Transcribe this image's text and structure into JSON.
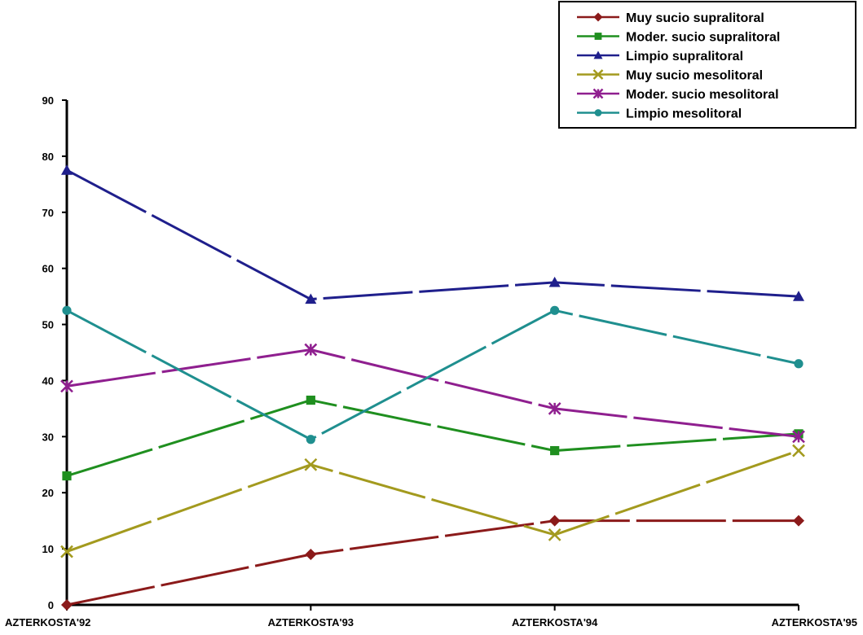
{
  "chart_data": {
    "type": "line",
    "title": "",
    "xlabel": "",
    "ylabel": "",
    "categories": [
      "AZTERKOSTA'92",
      "AZTERKOSTA'93",
      "AZTERKOSTA'94",
      "AZTERKOSTA'95"
    ],
    "ylim": [
      0,
      90
    ],
    "yticks": [
      0,
      10,
      20,
      30,
      40,
      50,
      60,
      70,
      80,
      90
    ],
    "grid": false,
    "legend_position": "top-right",
    "series": [
      {
        "name": "Muy sucio supralitoral",
        "color": "#8b1a1a",
        "marker": "diamond",
        "values": [
          0,
          9,
          15,
          15
        ]
      },
      {
        "name": "Moder. sucio supralitoral",
        "color": "#1f8f1f",
        "marker": "square",
        "values": [
          23,
          36.5,
          27.5,
          30.5
        ]
      },
      {
        "name": "Limpio supralitoral",
        "color": "#1f1f8c",
        "marker": "triangle",
        "values": [
          77.5,
          54.5,
          57.5,
          55
        ]
      },
      {
        "name": "Muy sucio mesolitoral",
        "color": "#a39a1e",
        "marker": "x",
        "values": [
          9.5,
          25,
          12.5,
          27.5
        ]
      },
      {
        "name": "Moder. sucio mesolitoral",
        "color": "#8f1f8f",
        "marker": "star",
        "values": [
          39,
          45.5,
          35,
          30
        ]
      },
      {
        "name": "Limpio mesolitoral",
        "color": "#1f8f8f",
        "marker": "circle",
        "values": [
          52.5,
          29.5,
          52.5,
          43
        ]
      }
    ]
  }
}
